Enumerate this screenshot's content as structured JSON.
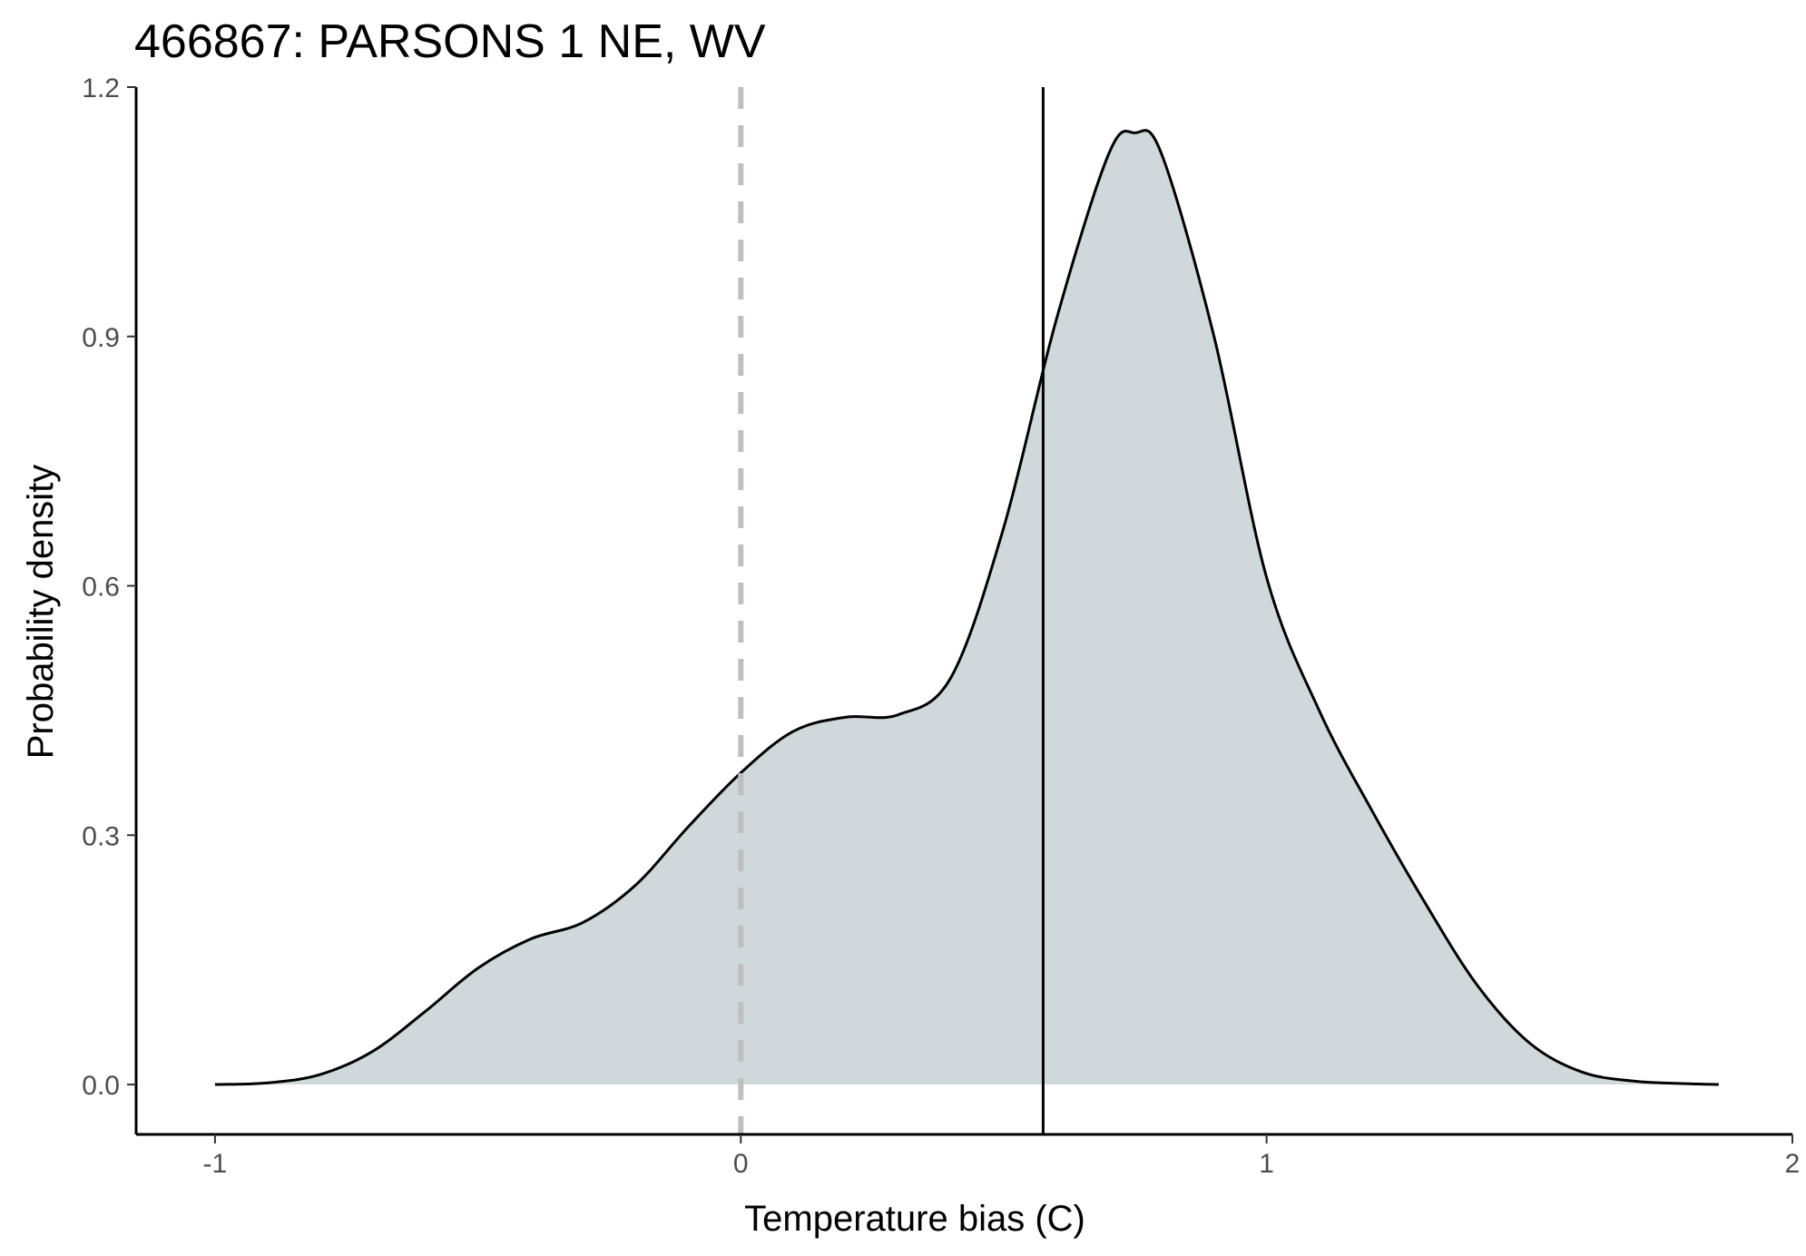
{
  "chart_data": {
    "type": "area",
    "title": "466867: PARSONS 1 NE, WV",
    "xlabel": "Temperature bias (C)",
    "ylabel": "Probability density",
    "xlim": [
      -1.15,
      2.0
    ],
    "ylim": [
      -0.06,
      1.2
    ],
    "x_ticks": [
      -1,
      0,
      1,
      2
    ],
    "x_tick_labels": [
      "-1",
      "0",
      "1",
      "2"
    ],
    "y_ticks": [
      0.0,
      0.3,
      0.6,
      0.9,
      1.2
    ],
    "y_tick_labels": [
      "0.0",
      "0.3",
      "0.6",
      "0.9",
      "1.2"
    ],
    "grid": false,
    "legend": "none",
    "series": [
      {
        "x": [
          -1.0,
          -0.9,
          -0.8,
          -0.7,
          -0.6,
          -0.5,
          -0.4,
          -0.3,
          -0.2,
          -0.1,
          0.0,
          0.1,
          0.2,
          0.3,
          0.4,
          0.5,
          0.6,
          0.7,
          0.75,
          0.8,
          0.9,
          1.0,
          1.1,
          1.2,
          1.3,
          1.4,
          1.5,
          1.6,
          1.7,
          1.8,
          1.86
        ],
        "y": [
          0.0,
          0.002,
          0.012,
          0.04,
          0.088,
          0.14,
          0.175,
          0.195,
          0.24,
          0.31,
          0.375,
          0.425,
          0.442,
          0.445,
          0.49,
          0.67,
          0.92,
          1.12,
          1.145,
          1.12,
          0.9,
          0.61,
          0.45,
          0.33,
          0.22,
          0.12,
          0.05,
          0.015,
          0.004,
          0.001,
          0.0
        ]
      }
    ],
    "fill_color": "#cfd9dc",
    "line_color": "#000000",
    "reference_lines": [
      {
        "x": 0.0,
        "style": "dashed",
        "color": "#bfbfbf"
      },
      {
        "x": 0.575,
        "style": "solid",
        "color": "#000000"
      }
    ]
  }
}
